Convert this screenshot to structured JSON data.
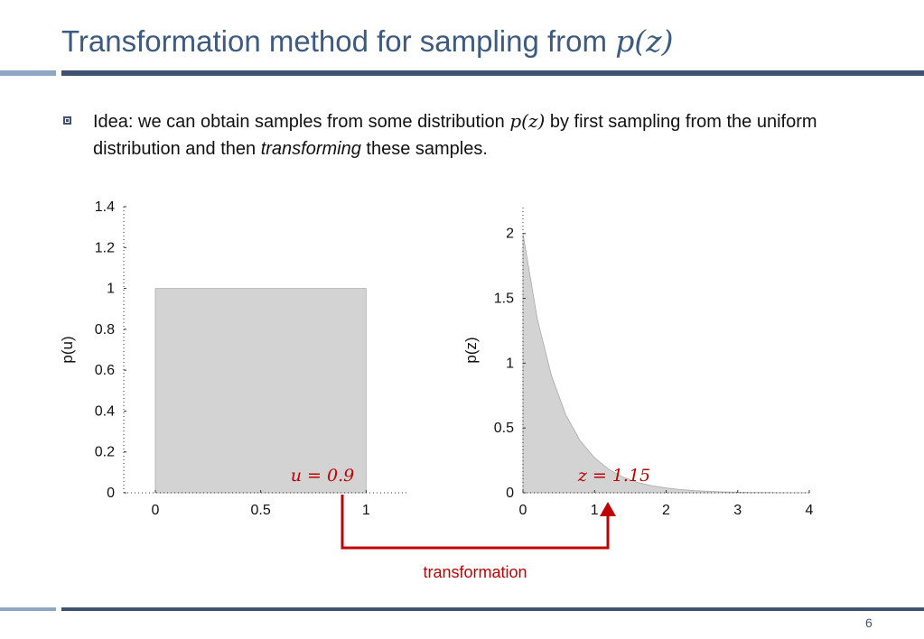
{
  "slide": {
    "title_text": "Transformation method for sampling from ",
    "title_math": "p(z)",
    "bullet_part1": "Idea: we can obtain samples from some distribution ",
    "bullet_math": "p(z)",
    "bullet_part2": " by first sampling from the uniform distribution and then ",
    "bullet_emph": "transforming",
    "bullet_part3": " these samples.",
    "page_number": "6",
    "arrow_label": "transformation",
    "colors": {
      "title": "#3d5a80",
      "rule": "#3f5272",
      "rule_light": "#8fa6c4",
      "arrow": "#c00000",
      "fill": "#d3d3d3"
    }
  },
  "chart_data": [
    {
      "type": "area",
      "xlabel": "",
      "ylabel": "p(u)",
      "xlim": [
        -0.15,
        1.2
      ],
      "ylim": [
        0,
        1.4
      ],
      "x_ticks": [
        "0",
        "0.5",
        "1"
      ],
      "y_ticks": [
        "0",
        "0.2",
        "0.4",
        "0.6",
        "0.8",
        "1",
        "1.2",
        "1.4"
      ],
      "x": [
        0,
        0,
        1,
        1
      ],
      "y": [
        0,
        1,
        1,
        0
      ],
      "annotation": "u = 0.9"
    },
    {
      "type": "area",
      "xlabel": "",
      "ylabel": "p(z)",
      "xlim": [
        0,
        4
      ],
      "ylim": [
        0,
        2.2
      ],
      "x_ticks": [
        "0",
        "1",
        "2",
        "3",
        "4"
      ],
      "y_ticks": [
        "0",
        "0.5",
        "1",
        "1.5",
        "2"
      ],
      "x": [
        0,
        0.2,
        0.4,
        0.6,
        0.8,
        1.0,
        1.2,
        1.4,
        1.6,
        1.8,
        2.0,
        2.2,
        2.4,
        2.6,
        2.8,
        3.0,
        3.2,
        3.4,
        3.6,
        3.8,
        4.0
      ],
      "y": [
        2.0,
        1.34,
        0.9,
        0.6,
        0.4,
        0.27,
        0.18,
        0.12,
        0.08,
        0.055,
        0.037,
        0.025,
        0.016,
        0.011,
        0.007,
        0.005,
        0.003,
        0.002,
        0.001,
        0.001,
        0.0
      ],
      "annotation": "z = 1.15"
    }
  ]
}
